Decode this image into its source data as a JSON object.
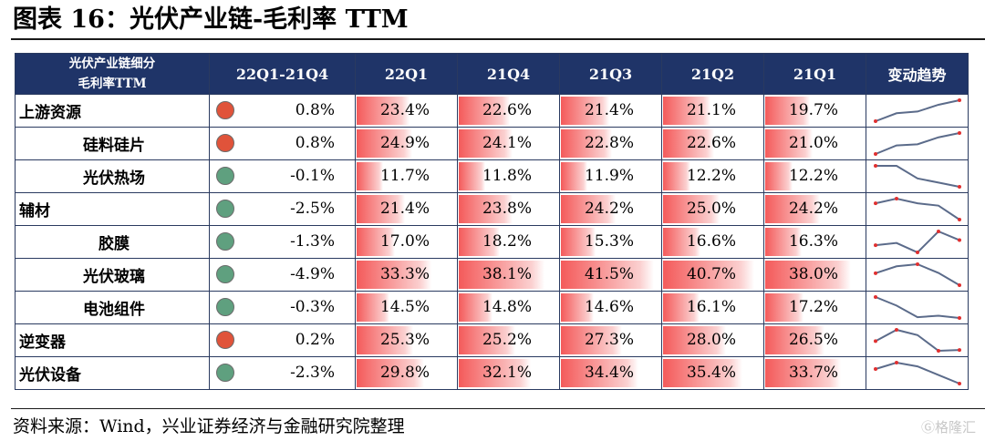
{
  "title": "图表 16：光伏产业链-毛利率 TTM",
  "header": {
    "col0_line1": "光伏产业链细分",
    "col0_line2": "毛利率TTM",
    "change": "22Q1-21Q4",
    "periods": [
      "22Q1",
      "21Q4",
      "21Q3",
      "21Q2",
      "21Q1"
    ],
    "trend": "变动趋势"
  },
  "colors": {
    "up": "#e0533a",
    "down": "#5fa07f",
    "header_bg": "#1f3468",
    "spark": "#5b6b8a",
    "spark_point": "#e03030"
  },
  "rows": [
    {
      "name": "上游资源",
      "level": 1,
      "dir": "up",
      "change": "0.8%",
      "values": [
        "23.4%",
        "22.6%",
        "21.4%",
        "21.1%",
        "19.7%"
      ],
      "num": [
        23.4,
        22.6,
        21.4,
        21.1,
        19.7
      ]
    },
    {
      "name": "硅料硅片",
      "level": 2,
      "dir": "up",
      "change": "0.8%",
      "values": [
        "24.9%",
        "24.1%",
        "22.8%",
        "22.6%",
        "21.0%"
      ],
      "num": [
        24.9,
        24.1,
        22.8,
        22.6,
        21.0
      ]
    },
    {
      "name": "光伏热场",
      "level": 2,
      "dir": "down",
      "change": "-0.1%",
      "values": [
        "11.7%",
        "11.8%",
        "11.9%",
        "12.2%",
        "12.2%"
      ],
      "num": [
        11.7,
        11.8,
        11.9,
        12.2,
        12.2
      ]
    },
    {
      "name": "辅材",
      "level": 1,
      "dir": "down",
      "change": "-2.5%",
      "values": [
        "21.4%",
        "23.8%",
        "24.2%",
        "25.0%",
        "24.2%"
      ],
      "num": [
        21.4,
        23.8,
        24.2,
        25.0,
        24.2
      ]
    },
    {
      "name": "胶膜",
      "level": 2,
      "dir": "down",
      "change": "-1.3%",
      "values": [
        "17.0%",
        "18.2%",
        "15.3%",
        "16.6%",
        "16.3%"
      ],
      "num": [
        17.0,
        18.2,
        15.3,
        16.6,
        16.3
      ]
    },
    {
      "name": "光伏玻璃",
      "level": 2,
      "dir": "down",
      "change": "-4.9%",
      "values": [
        "33.3%",
        "38.1%",
        "41.5%",
        "40.7%",
        "38.0%"
      ],
      "num": [
        33.3,
        38.1,
        41.5,
        40.7,
        38.0
      ]
    },
    {
      "name": "电池组件",
      "level": 2,
      "dir": "down",
      "change": "-0.3%",
      "values": [
        "14.5%",
        "14.8%",
        "14.6%",
        "16.1%",
        "17.2%"
      ],
      "num": [
        14.5,
        14.8,
        14.6,
        16.1,
        17.2
      ]
    },
    {
      "name": "逆变器",
      "level": 1,
      "dir": "up",
      "change": "0.2%",
      "values": [
        "25.3%",
        "25.2%",
        "27.3%",
        "28.0%",
        "26.5%"
      ],
      "num": [
        25.3,
        25.2,
        27.3,
        28.0,
        26.5
      ]
    },
    {
      "name": "光伏设备",
      "level": 1,
      "dir": "down",
      "change": "-2.3%",
      "values": [
        "29.8%",
        "32.1%",
        "34.4%",
        "35.4%",
        "33.7%"
      ],
      "num": [
        29.8,
        32.1,
        34.4,
        35.4,
        33.7
      ]
    }
  ],
  "footer": "资料来源：Wind，兴业证券经济与金融研究院整理",
  "watermark": "格隆汇"
}
